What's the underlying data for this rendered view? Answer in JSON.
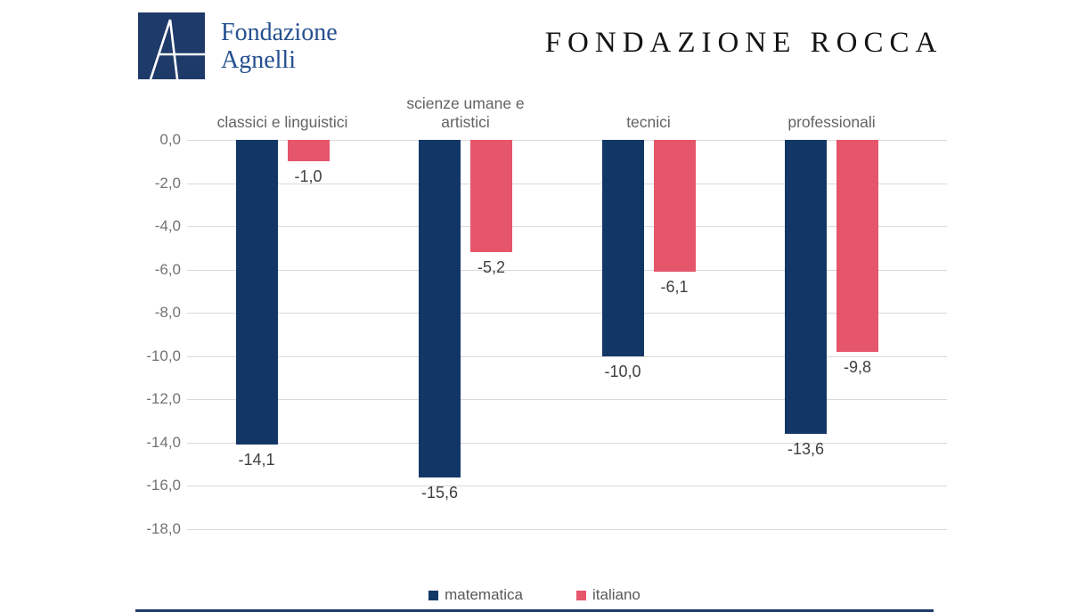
{
  "header": {
    "logo_line1": "Fondazione",
    "logo_line2": "Agnelli",
    "title": "FONDAZIONE ROCCA"
  },
  "colors": {
    "matematica": "#123767",
    "italiano": "#e5566b",
    "logo_navy": "#1e3a69",
    "grid": "#d9d9d9"
  },
  "chart_data": {
    "type": "bar",
    "categories": [
      "classici e linguistici",
      "scienze umane e\nartistici",
      "tecnici",
      "professionali"
    ],
    "series": [
      {
        "name": "matematica",
        "color": "#123767",
        "values": [
          -14.1,
          -15.6,
          -10.0,
          -13.6
        ],
        "labels": [
          "-14,1",
          "-15,6",
          "-10,0",
          "-13,6"
        ]
      },
      {
        "name": "italiano",
        "color": "#e5566b",
        "values": [
          -1.0,
          -5.2,
          -6.1,
          -9.8
        ],
        "labels": [
          "-1,0",
          "-5,2",
          "-6,1",
          "-9,8"
        ]
      }
    ],
    "y_ticks": [
      "0,0",
      "-2,0",
      "-4,0",
      "-6,0",
      "-8,0",
      "-10,0",
      "-12,0",
      "-14,0",
      "-16,0",
      "-18,0"
    ],
    "ylim": [
      0,
      -18
    ],
    "grid": true,
    "legend_position": "bottom"
  },
  "legend": {
    "items": [
      {
        "label": "matematica",
        "color": "#123767"
      },
      {
        "label": "italiano",
        "color": "#e5566b"
      }
    ]
  }
}
